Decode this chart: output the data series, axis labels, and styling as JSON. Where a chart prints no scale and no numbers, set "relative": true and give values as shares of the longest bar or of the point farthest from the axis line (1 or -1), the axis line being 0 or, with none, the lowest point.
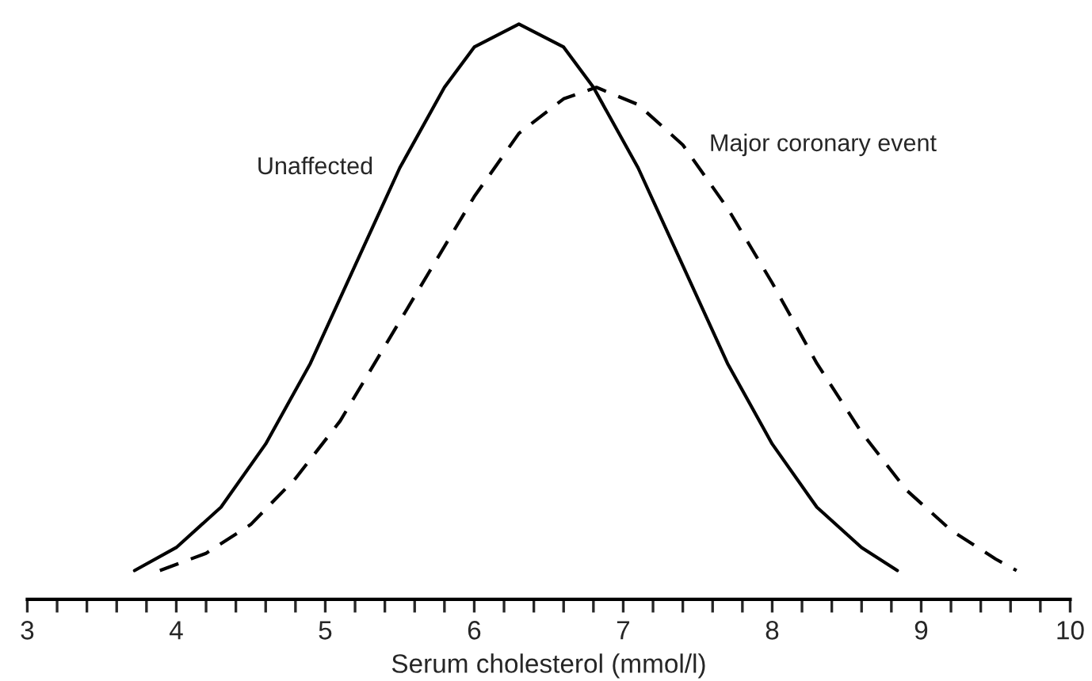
{
  "chart_data": {
    "type": "line",
    "relative": true,
    "xlabel": "Serum cholesterol (mmol/l)",
    "xlim": [
      3,
      10
    ],
    "xticks": [
      3,
      {
        "value": 3.2,
        "label": null
      },
      {
        "value": 3.4,
        "label": null
      },
      {
        "value": 3.6,
        "label": null
      },
      {
        "value": 3.8,
        "label": null
      },
      4,
      {
        "value": 4.2,
        "label": null
      },
      {
        "value": 4.4,
        "label": null
      },
      {
        "value": 4.6,
        "label": null
      },
      {
        "value": 4.8,
        "label": null
      },
      5,
      {
        "value": 5.2,
        "label": null
      },
      {
        "value": 5.4,
        "label": null
      },
      {
        "value": 5.6,
        "label": null
      },
      {
        "value": 5.8,
        "label": null
      },
      6,
      {
        "value": 6.2,
        "label": null
      },
      {
        "value": 6.4,
        "label": null
      },
      {
        "value": 6.6,
        "label": null
      },
      {
        "value": 6.8,
        "label": null
      },
      7,
      {
        "value": 7.2,
        "label": null
      },
      {
        "value": 7.4,
        "label": null
      },
      {
        "value": 7.6,
        "label": null
      },
      {
        "value": 7.8,
        "label": null
      },
      8,
      {
        "value": 8.2,
        "label": null
      },
      {
        "value": 8.4,
        "label": null
      },
      {
        "value": 8.6,
        "label": null
      },
      {
        "value": 8.8,
        "label": null
      },
      9,
      {
        "value": 9.2,
        "label": null
      },
      {
        "value": 9.4,
        "label": null
      },
      {
        "value": 9.6,
        "label": null
      },
      {
        "value": 9.8,
        "label": null
      },
      10
    ],
    "tick_labels": "x",
    "grid": false,
    "legend": false,
    "marker": "none",
    "series": [
      {
        "name": "Unaffected",
        "color": "#000000",
        "line_style": "solid",
        "x": [
          3.72,
          4.0,
          4.3,
          4.6,
          4.9,
          5.2,
          5.5,
          5.8,
          6.0,
          6.3,
          6.6,
          6.8,
          7.1,
          7.4,
          7.7,
          8.0,
          8.3,
          8.6,
          8.84
        ],
        "values": [
          0.05,
          0.09,
          0.16,
          0.27,
          0.41,
          0.58,
          0.75,
          0.89,
          0.96,
          1.0,
          0.96,
          0.89,
          0.75,
          0.58,
          0.41,
          0.27,
          0.16,
          0.09,
          0.05
        ]
      },
      {
        "name": "Major coronary event",
        "color": "#000000",
        "line_style": "dashed",
        "x": [
          3.89,
          4.2,
          4.5,
          4.8,
          5.1,
          5.4,
          5.7,
          6.0,
          6.3,
          6.6,
          6.82,
          7.1,
          7.4,
          7.7,
          8.0,
          8.3,
          8.6,
          8.9,
          9.2,
          9.5,
          9.64
        ],
        "values": [
          0.05,
          0.08,
          0.13,
          0.21,
          0.31,
          0.44,
          0.57,
          0.7,
          0.81,
          0.87,
          0.89,
          0.86,
          0.79,
          0.68,
          0.55,
          0.41,
          0.29,
          0.19,
          0.12,
          0.07,
          0.05
        ]
      }
    ]
  }
}
